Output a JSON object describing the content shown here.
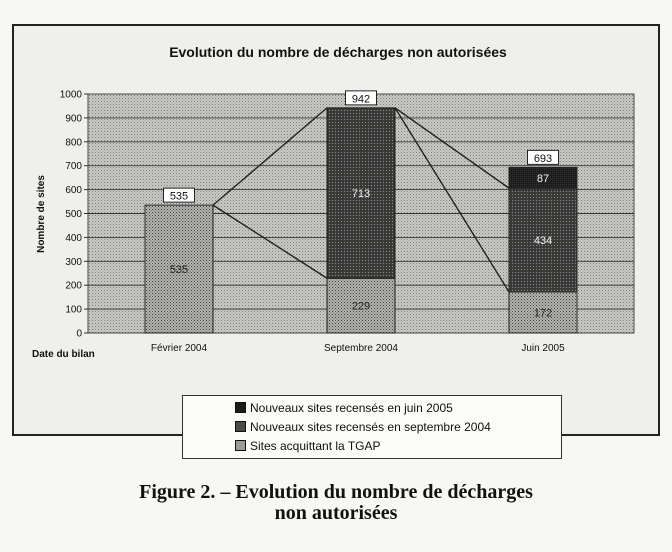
{
  "chart_data": {
    "type": "bar",
    "title": "Evolution du nombre de décharges non autorisées",
    "xlabel": "Date du bilan",
    "ylabel": "Nombre de sites",
    "ylim": [
      0,
      1000
    ],
    "yticks": [
      0,
      100,
      200,
      300,
      400,
      500,
      600,
      700,
      800,
      900,
      1000
    ],
    "categories": [
      "Février 2004",
      "Septembre 2004",
      "Juin 2005"
    ],
    "stacked": true,
    "grid": true,
    "series": [
      {
        "name": "Sites acquittant la TGAP",
        "values": [
          535,
          229,
          172
        ],
        "segment_labels": [
          "535",
          "229",
          "172"
        ],
        "color": "#9a9a9a",
        "pattern": "light-dots"
      },
      {
        "name": "Nouveaux sites recensés en septembre 2004",
        "values": [
          0,
          713,
          434
        ],
        "segment_labels": [
          "",
          "713",
          "434"
        ],
        "color": "#4a4a4a",
        "pattern": "dark-dots"
      },
      {
        "name": "Nouveaux sites recensés en juin 2005",
        "values": [
          0,
          0,
          87
        ],
        "segment_labels": [
          "",
          "",
          "87"
        ],
        "color": "#222222",
        "pattern": "solid-dark"
      }
    ],
    "totals": [
      "535",
      "942",
      "693"
    ],
    "legend_position": "bottom"
  },
  "figure_caption": {
    "line1": "Figure  2. – Evolution du nombre de décharges",
    "line2": "non autorisées"
  }
}
